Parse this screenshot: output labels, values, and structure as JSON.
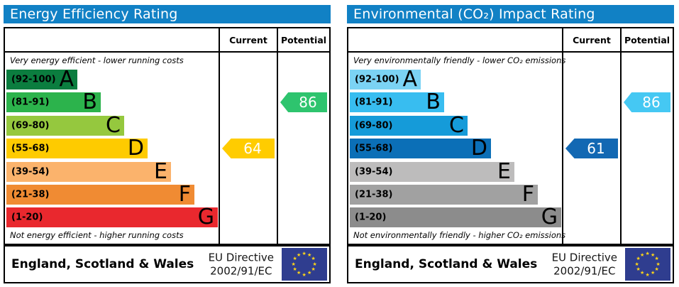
{
  "colors": {
    "header_bg": "#1181c5",
    "border": "#000000",
    "eu_flag_bg": "#2f3d8f",
    "eu_star": "#ffd617",
    "arrow_text": "#ffffff"
  },
  "chart_data": [
    {
      "type": "bar",
      "title": "Energy Efficiency Rating",
      "top_caption": "Very energy efficient - lower running costs",
      "bottom_caption": "Not energy efficient - higher running costs",
      "columns": [
        "Current",
        "Potential"
      ],
      "categories": [
        "A",
        "B",
        "C",
        "D",
        "E",
        "F",
        "G"
      ],
      "scale": {
        "min": 1,
        "max": 100
      },
      "bands": [
        {
          "label": "(92-100)",
          "letter": "A",
          "color": "#0b7d3f"
        },
        {
          "label": "(81-91)",
          "letter": "B",
          "color": "#2cb34c"
        },
        {
          "label": "(69-80)",
          "letter": "C",
          "color": "#95c83e"
        },
        {
          "label": "(55-68)",
          "letter": "D",
          "color": "#fecb00"
        },
        {
          "label": "(39-54)",
          "letter": "E",
          "color": "#fbb36c"
        },
        {
          "label": "(21-38)",
          "letter": "F",
          "color": "#f08b33"
        },
        {
          "label": "(1-20)",
          "letter": "G",
          "color": "#e9282e"
        }
      ],
      "current": {
        "value": 64,
        "band": "D",
        "arrow_color": "#ffcc00"
      },
      "potential": {
        "value": 86,
        "band": "B",
        "arrow_color": "#2ec46e"
      },
      "footer": {
        "region": "England, Scotland & Wales",
        "directive": [
          "EU Directive",
          "2002/91/EC"
        ]
      }
    },
    {
      "type": "bar",
      "title": "Environmental (CO₂) Impact Rating",
      "top_caption": "Very environmentally friendly - lower CO₂ emissions",
      "bottom_caption": "Not environmentally friendly - higher CO₂ emissions",
      "columns": [
        "Current",
        "Potential"
      ],
      "categories": [
        "A",
        "B",
        "C",
        "D",
        "E",
        "F",
        "G"
      ],
      "scale": {
        "min": 1,
        "max": 100
      },
      "bands": [
        {
          "label": "(92-100)",
          "letter": "A",
          "color": "#7bd3f4"
        },
        {
          "label": "(81-91)",
          "letter": "B",
          "color": "#38bdf0"
        },
        {
          "label": "(69-80)",
          "letter": "C",
          "color": "#159bd9"
        },
        {
          "label": "(55-68)",
          "letter": "D",
          "color": "#0b6fb7"
        },
        {
          "label": "(39-54)",
          "letter": "E",
          "color": "#bdbcbc"
        },
        {
          "label": "(21-38)",
          "letter": "F",
          "color": "#a1a1a1"
        },
        {
          "label": "(1-20)",
          "letter": "G",
          "color": "#8c8c8c"
        }
      ],
      "current": {
        "value": 61,
        "band": "D",
        "arrow_color": "#1268b3"
      },
      "potential": {
        "value": 86,
        "band": "B",
        "arrow_color": "#45c8f3"
      },
      "footer": {
        "region": "England, Scotland & Wales",
        "directive": [
          "EU Directive",
          "2002/91/EC"
        ]
      }
    }
  ]
}
